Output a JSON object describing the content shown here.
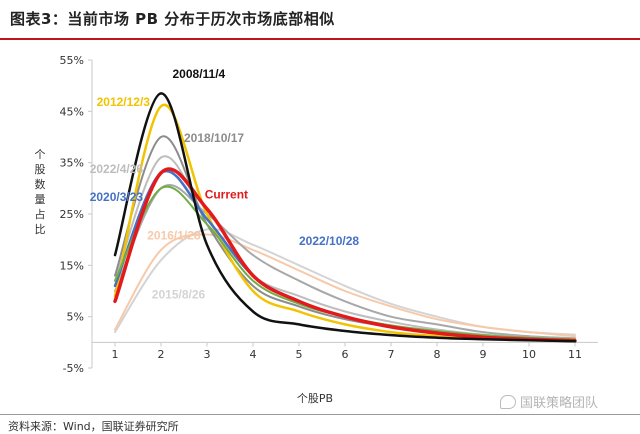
{
  "header": {
    "title": "图表3：当前市场 PB 分布于历次市场底部相似"
  },
  "footer": {
    "source": "资料来源：Wind，国联证券研究所",
    "watermark": "国联策略团队",
    "watermark_icon": "wechat-icon"
  },
  "colors": {
    "title_rule": "#c0141c"
  },
  "chart_data": {
    "type": "line",
    "title": "",
    "xlabel": "个股PB",
    "ylabel": "个股数量占比",
    "xlim": [
      0.5,
      11.5
    ],
    "ylim": [
      -0.05,
      0.55
    ],
    "x_ticks": [
      1,
      2,
      3,
      4,
      5,
      6,
      7,
      8,
      9,
      10,
      11
    ],
    "y_ticks": [
      {
        "value": 0.55,
        "label": "55%"
      },
      {
        "value": 0.45,
        "label": "45%"
      },
      {
        "value": 0.35,
        "label": "35%"
      },
      {
        "value": 0.25,
        "label": "25%"
      },
      {
        "value": 0.15,
        "label": "15%"
      },
      {
        "value": 0.05,
        "label": "5%"
      },
      {
        "value": -0.05,
        "label": "-5%"
      }
    ],
    "grid": false,
    "x": [
      1,
      2,
      3,
      4,
      5,
      6,
      7,
      8,
      9,
      10,
      11
    ],
    "series": [
      {
        "name": "2015/8/26",
        "color": "#d4d4d4",
        "width": 2,
        "values": [
          0.02,
          0.16,
          0.22,
          0.19,
          0.15,
          0.11,
          0.075,
          0.05,
          0.03,
          0.02,
          0.015
        ]
      },
      {
        "name": "2016/1/28",
        "color": "#f7c9a9",
        "width": 2,
        "values": [
          0.025,
          0.18,
          0.21,
          0.18,
          0.14,
          0.1,
          0.07,
          0.045,
          0.03,
          0.02,
          0.012
        ]
      },
      {
        "name": "2022/10/28",
        "color": "#a8a8a8",
        "width": 2,
        "values": [
          0.1,
          0.3,
          0.25,
          0.17,
          0.12,
          0.08,
          0.05,
          0.035,
          0.02,
          0.012,
          0.008
        ]
      },
      {
        "name": "2022/4/26",
        "color": "#bdbdbd",
        "width": 2,
        "values": [
          0.12,
          0.36,
          0.24,
          0.13,
          0.09,
          0.06,
          0.04,
          0.025,
          0.015,
          0.01,
          0.006
        ]
      },
      {
        "name": "2018/10/17",
        "color": "#8c8c8c",
        "width": 2,
        "values": [
          0.13,
          0.4,
          0.23,
          0.11,
          0.07,
          0.045,
          0.03,
          0.02,
          0.012,
          0.008,
          0.005
        ]
      },
      {
        "name": "2012/12/3",
        "color": "#f2c300",
        "width": 2.5,
        "values": [
          0.09,
          0.46,
          0.25,
          0.1,
          0.06,
          0.035,
          0.02,
          0.012,
          0.008,
          0.005,
          0.003
        ]
      },
      {
        "name": "2020/3/23",
        "color": "#4472c4",
        "width": 2.5,
        "values": [
          0.11,
          0.33,
          0.24,
          0.13,
          0.08,
          0.05,
          0.032,
          0.02,
          0.012,
          0.008,
          0.005
        ]
      },
      {
        "name": "",
        "color": "#70ad47",
        "width": 2,
        "values": [
          0.12,
          0.3,
          0.23,
          0.12,
          0.075,
          0.05,
          0.033,
          0.022,
          0.014,
          0.009,
          0.006
        ]
      },
      {
        "name": "Current",
        "color": "#e31a1c",
        "width": 3.5,
        "values": [
          0.08,
          0.33,
          0.26,
          0.13,
          0.08,
          0.05,
          0.03,
          0.018,
          0.01,
          0.006,
          0.003
        ]
      },
      {
        "name": "2008/11/4",
        "color": "#111111",
        "width": 2.5,
        "values": [
          0.17,
          0.485,
          0.19,
          0.06,
          0.035,
          0.022,
          0.014,
          0.009,
          0.006,
          0.004,
          0.002
        ]
      }
    ],
    "annotations": [
      {
        "text": "2008/11/4",
        "x": 2.25,
        "y": 0.515,
        "color": "#111111"
      },
      {
        "text": "2012/12/3",
        "x": 0.6,
        "y": 0.46,
        "color": "#f2c300"
      },
      {
        "text": "2018/10/17",
        "x": 2.5,
        "y": 0.39,
        "color": "#8c8c8c"
      },
      {
        "text": "2022/4/26",
        "x": 0.45,
        "y": 0.33,
        "color": "#bdbdbd"
      },
      {
        "text": "2020/3/23",
        "x": 0.45,
        "y": 0.275,
        "color": "#4472c4"
      },
      {
        "text": "Current",
        "x": 2.95,
        "y": 0.28,
        "color": "#e31a1c"
      },
      {
        "text": "2016/1/28",
        "x": 1.7,
        "y": 0.2,
        "color": "#f7c9a9"
      },
      {
        "text": "2022/10/28",
        "x": 5.0,
        "y": 0.19,
        "color": "#4472c4"
      },
      {
        "text": "2015/8/26",
        "x": 1.8,
        "y": 0.085,
        "color": "#d4d4d4"
      }
    ]
  }
}
